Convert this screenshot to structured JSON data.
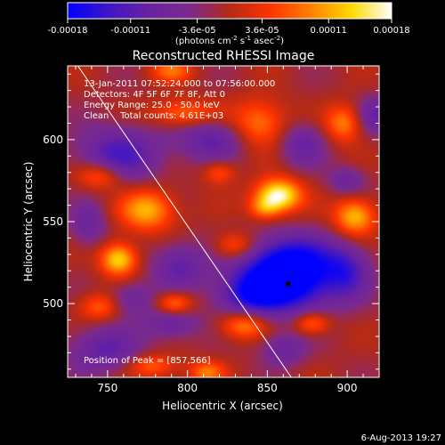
{
  "colorbar": {
    "stops": [
      "#0000ff",
      "#3d16c8",
      "#6a22a0",
      "#7a2a8e",
      "#b32a18",
      "#ff3300",
      "#ff8000",
      "#ffd800",
      "#ffffff"
    ],
    "tick_labels": [
      "-0.00018",
      "-0.00011",
      "-3.6e-05",
      "3.6e-05",
      "0.00011",
      "0.00018"
    ],
    "unit_parts": [
      "(photons cm",
      "-2",
      " s",
      "-1",
      " asec",
      "-2",
      ")"
    ]
  },
  "chart_data": {
    "type": "heatmap",
    "title": "Reconstructed RHESSI Image",
    "xlabel": "Heliocentric X (arcsec)",
    "ylabel": "Heliocentric Y (arcsec)",
    "xlim": [
      725,
      920
    ],
    "ylim": [
      455,
      645
    ],
    "xticks": [
      750,
      800,
      850,
      900
    ],
    "yticks": [
      500,
      550,
      600
    ],
    "value_range": [
      -0.00018,
      0.00018
    ],
    "info_lines": [
      "13-Jan-2011 07:52:24.000 to 07:56:00.000",
      "Detectors: 4F 5F 6F 7F 8F, Att 0",
      "Energy Range: 25.0 - 50.0 keV",
      "Clean    Total counts: 4.61E+03"
    ],
    "peak_text": "Position of Peak = [857,566]",
    "min_marker": [
      863,
      512
    ],
    "limb_line": [
      [
        730,
        647
      ],
      [
        865,
        455
      ]
    ],
    "blobs": [
      {
        "x": 862,
        "y": 513,
        "sx": 22,
        "sy": 13,
        "a": -1.15
      },
      {
        "x": 865,
        "y": 530,
        "sx": 20,
        "sy": 10,
        "a": -0.55
      },
      {
        "x": 838,
        "y": 505,
        "sx": 14,
        "sy": 9,
        "a": -0.5
      },
      {
        "x": 900,
        "y": 520,
        "sx": 10,
        "sy": 11,
        "a": -0.5
      },
      {
        "x": 757,
        "y": 591,
        "sx": 19,
        "sy": 12,
        "a": -0.62
      },
      {
        "x": 815,
        "y": 600,
        "sx": 15,
        "sy": 9,
        "a": -0.5
      },
      {
        "x": 872,
        "y": 597,
        "sx": 10,
        "sy": 9,
        "a": -0.45
      },
      {
        "x": 795,
        "y": 523,
        "sx": 12,
        "sy": 10,
        "a": -0.5
      },
      {
        "x": 748,
        "y": 472,
        "sx": 16,
        "sy": 10,
        "a": -0.5
      },
      {
        "x": 790,
        "y": 488,
        "sx": 12,
        "sy": 7,
        "a": -0.45
      },
      {
        "x": 860,
        "y": 472,
        "sx": 10,
        "sy": 7,
        "a": -0.42
      },
      {
        "x": 738,
        "y": 548,
        "sx": 8,
        "sy": 9,
        "a": -0.4
      },
      {
        "x": 765,
        "y": 503,
        "sx": 10,
        "sy": 7,
        "a": -0.4
      },
      {
        "x": 900,
        "y": 575,
        "sx": 8,
        "sy": 6,
        "a": -0.4
      },
      {
        "x": 918,
        "y": 615,
        "sx": 8,
        "sy": 8,
        "a": -0.45
      },
      {
        "x": 857,
        "y": 566,
        "sx": 10,
        "sy": 7,
        "a": 1.05
      },
      {
        "x": 848,
        "y": 558,
        "sx": 7,
        "sy": 5,
        "a": 0.45
      },
      {
        "x": 775,
        "y": 557,
        "sx": 12,
        "sy": 9,
        "a": 0.7
      },
      {
        "x": 757,
        "y": 527,
        "sx": 8,
        "sy": 7,
        "a": 0.85
      },
      {
        "x": 745,
        "y": 578,
        "sx": 10,
        "sy": 6,
        "a": 0.55
      },
      {
        "x": 792,
        "y": 500,
        "sx": 8,
        "sy": 5,
        "a": 0.6
      },
      {
        "x": 835,
        "y": 487,
        "sx": 10,
        "sy": 6,
        "a": 0.6
      },
      {
        "x": 878,
        "y": 488,
        "sx": 8,
        "sy": 5,
        "a": 0.55
      },
      {
        "x": 845,
        "y": 610,
        "sx": 12,
        "sy": 10,
        "a": 0.55
      },
      {
        "x": 797,
        "y": 616,
        "sx": 14,
        "sy": 6,
        "a": 0.5
      },
      {
        "x": 905,
        "y": 553,
        "sx": 9,
        "sy": 8,
        "a": 0.75
      },
      {
        "x": 898,
        "y": 610,
        "sx": 8,
        "sy": 8,
        "a": 0.55
      },
      {
        "x": 830,
        "y": 535,
        "sx": 9,
        "sy": 6,
        "a": 0.5
      },
      {
        "x": 778,
        "y": 462,
        "sx": 11,
        "sy": 5,
        "a": 0.45
      },
      {
        "x": 812,
        "y": 458,
        "sx": 8,
        "sy": 5,
        "a": 0.5
      },
      {
        "x": 745,
        "y": 498,
        "sx": 9,
        "sy": 6,
        "a": 0.45
      },
      {
        "x": 820,
        "y": 580,
        "sx": 7,
        "sy": 5,
        "a": 0.4
      },
      {
        "x": 790,
        "y": 642,
        "sx": 9,
        "sy": 5,
        "a": 0.45
      }
    ]
  },
  "footer": {
    "timestamp": "6-Aug-2013 19:27"
  }
}
